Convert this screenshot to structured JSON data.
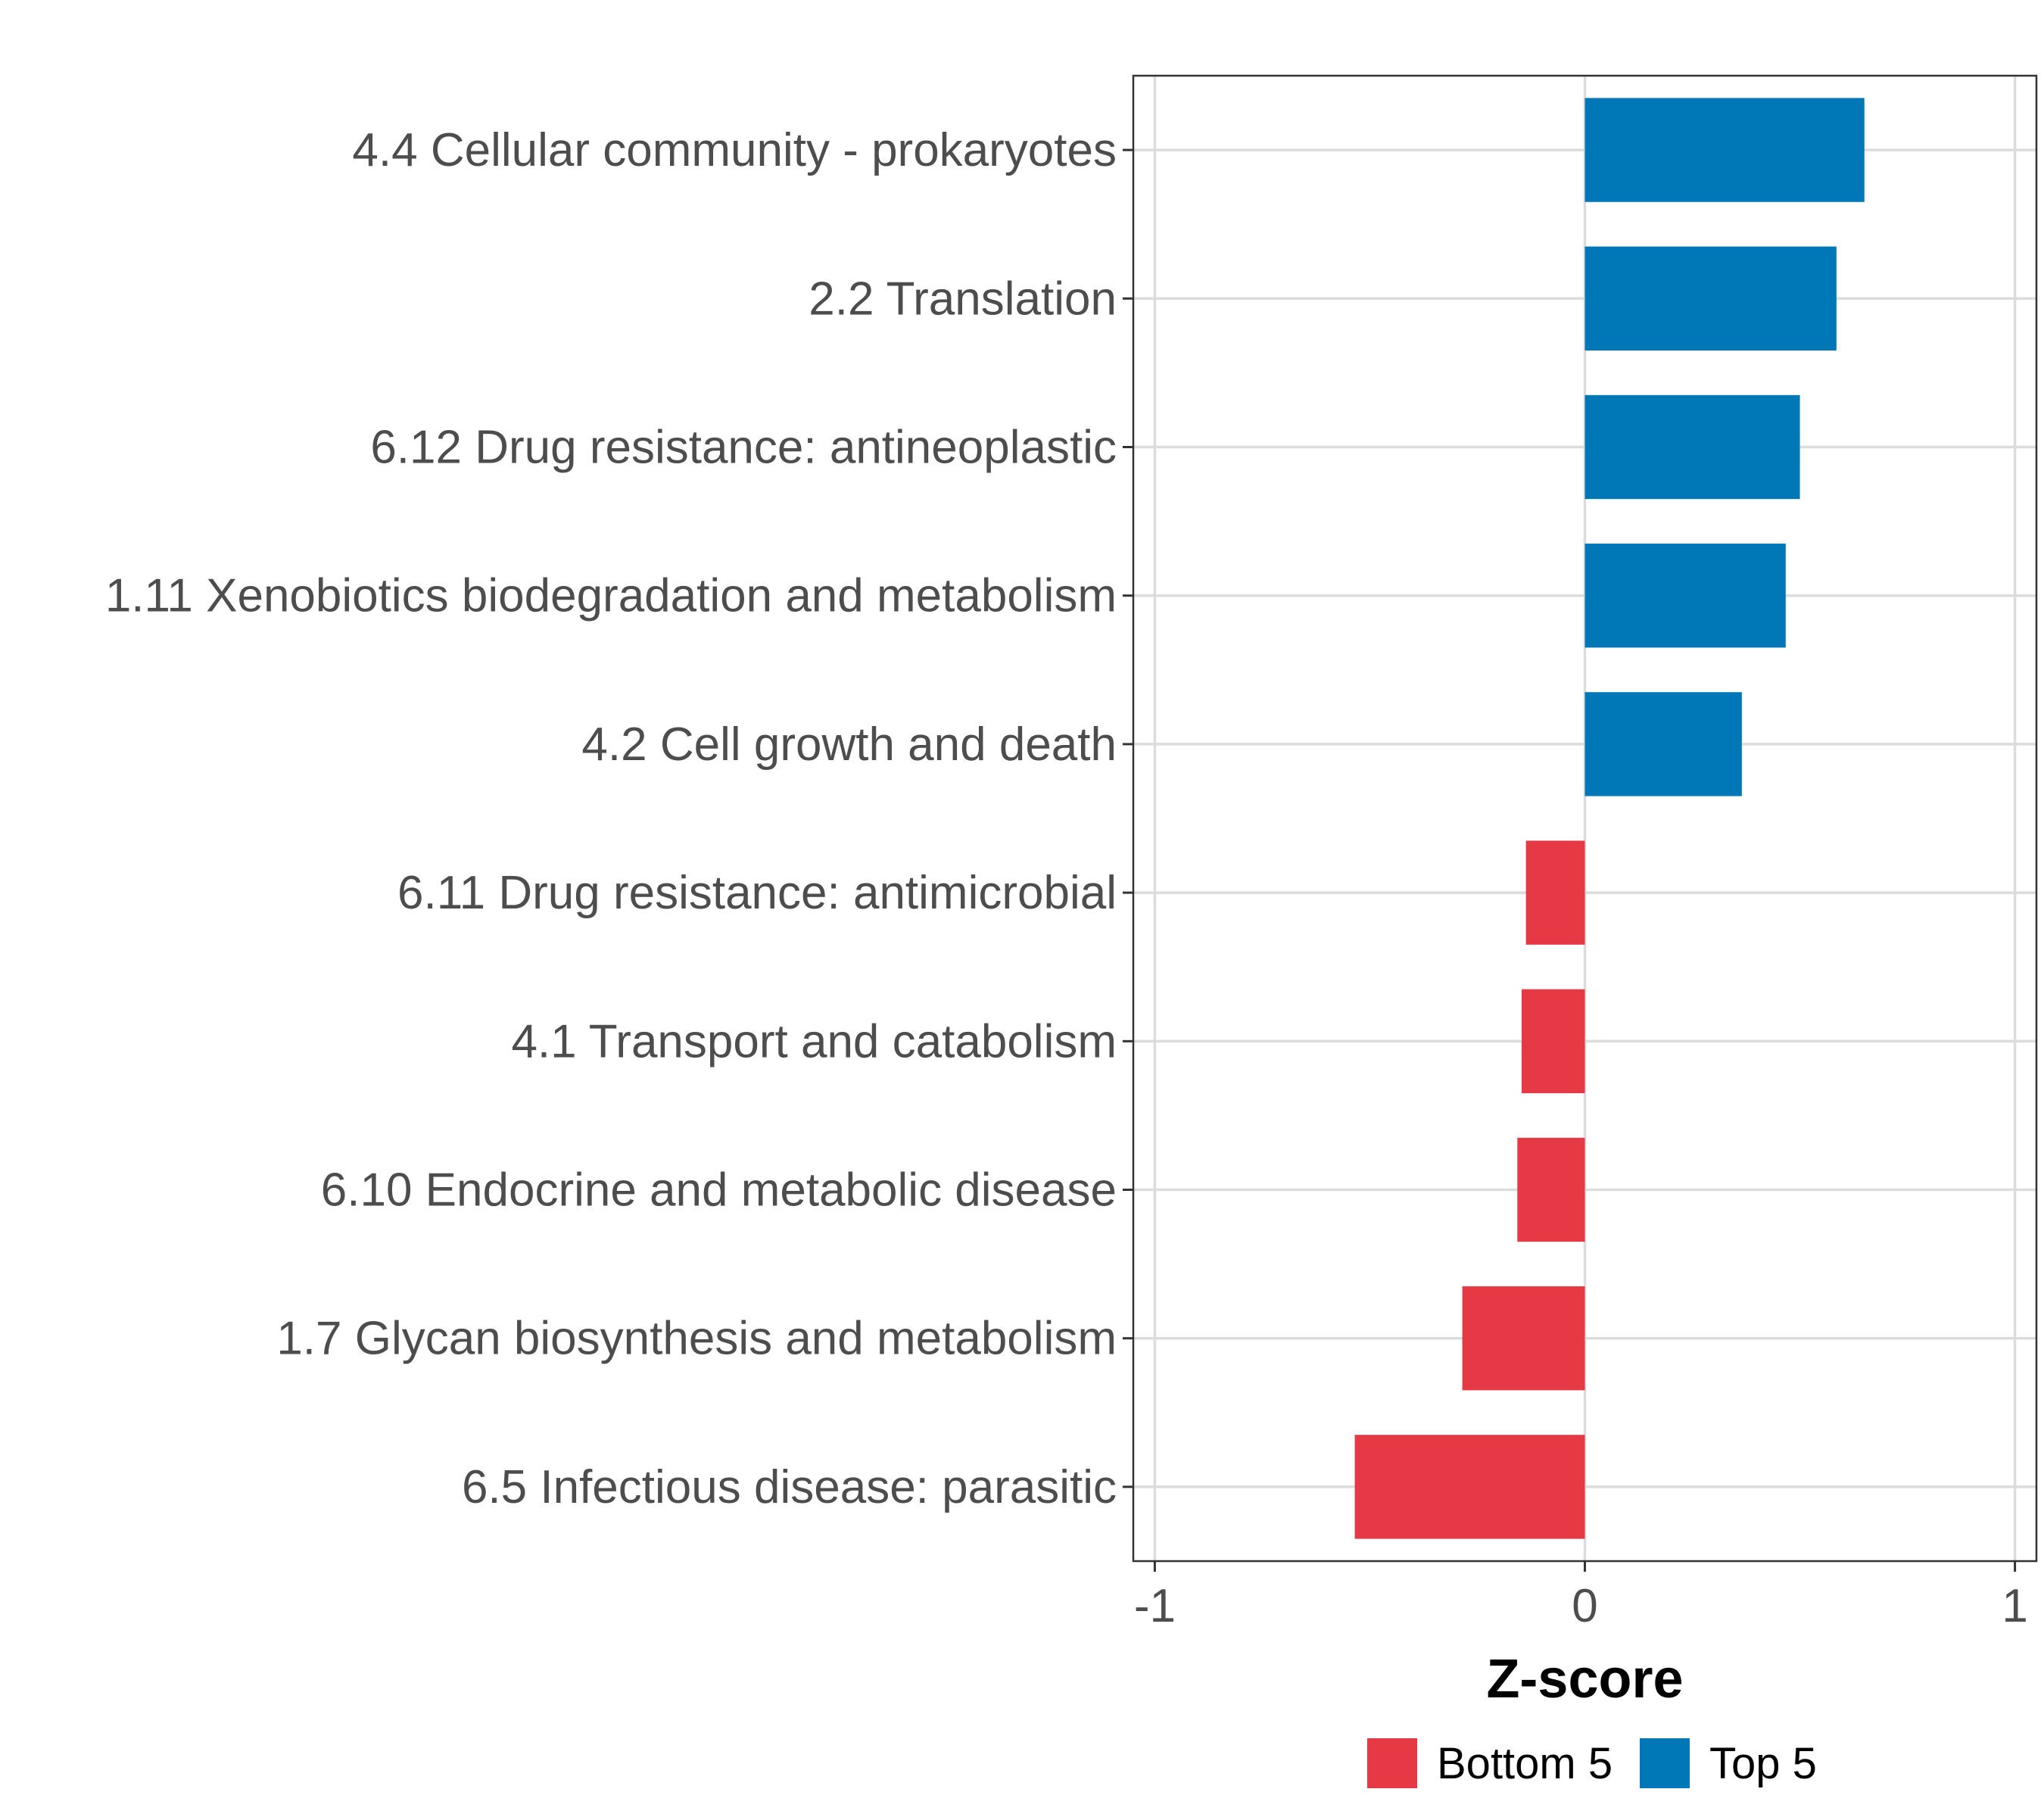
{
  "chart_data": {
    "type": "bar",
    "orientation": "horizontal",
    "categories": [
      "4.4 Cellular community - prokaryotes",
      "2.2 Translation",
      "6.12 Drug resistance: antineoplastic",
      "1.11 Xenobiotics biodegradation and metabolism",
      "4.2 Cell growth and death",
      "6.11 Drug resistance: antimicrobial",
      "4.1 Transport and catabolism",
      "6.10 Endocrine and metabolic disease",
      "1.7 Glycan biosynthesis and metabolism",
      "6.5 Infectious disease: parasitic"
    ],
    "values": [
      0.65,
      0.585,
      0.5,
      0.467,
      0.365,
      -0.137,
      -0.147,
      -0.157,
      -0.285,
      -0.535
    ],
    "groups": [
      "Top 5",
      "Top 5",
      "Top 5",
      "Top 5",
      "Top 5",
      "Bottom 5",
      "Bottom 5",
      "Bottom 5",
      "Bottom 5",
      "Bottom 5"
    ],
    "xlabel": "Z-score",
    "ylabel": "",
    "xlim": [
      -1.05,
      1.05
    ],
    "xticks": [
      -1,
      0,
      1
    ],
    "xtick_labels": [
      "-1",
      "0",
      "1"
    ],
    "grid": true,
    "legend": {
      "position": "bottom",
      "entries": [
        {
          "label": "Bottom 5",
          "color": "#e63946"
        },
        {
          "label": "Top 5",
          "color": "#0077b6"
        }
      ]
    },
    "colors": {
      "Top 5": "#0077b6",
      "Bottom 5": "#e63946"
    }
  }
}
